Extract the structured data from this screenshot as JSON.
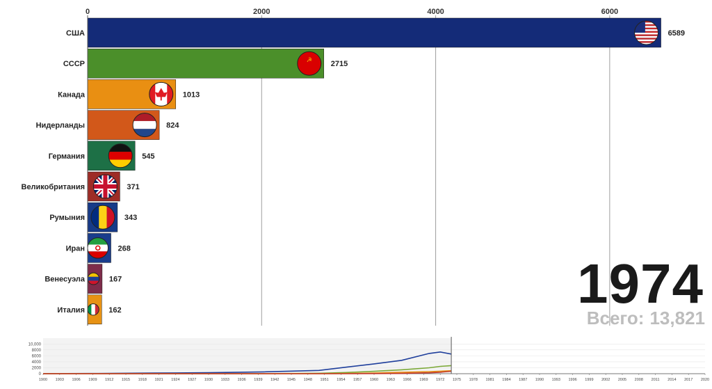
{
  "chart_data": [
    {
      "type": "bar",
      "orientation": "horizontal",
      "categories": [
        "США",
        "СССР",
        "Канада",
        "Нидерланды",
        "Германия",
        "Великобритания",
        "Румыния",
        "Иран",
        "Венесуэла",
        "Италия"
      ],
      "values": [
        6589,
        2715,
        1013,
        824,
        545,
        371,
        343,
        268,
        167,
        162
      ],
      "colors": [
        "#142b78",
        "#4b8f2a",
        "#e98f12",
        "#d2581a",
        "#1d7046",
        "#9e2c26",
        "#163a88",
        "#1a3d8c",
        "#7e2c4a",
        "#e79214"
      ],
      "flag_icons": [
        "us-flag-icon",
        "ussr-flag-icon",
        "canada-flag-icon",
        "netherlands-flag-icon",
        "germany-flag-icon",
        "uk-flag-icon",
        "romania-flag-icon",
        "iran-flag-icon",
        "venezuela-flag-icon",
        "italy-flag-icon"
      ],
      "xaxis_ticks": [
        0,
        2000,
        4000,
        6000
      ],
      "xlim": [
        0,
        7000
      ],
      "grid": true,
      "axis_position": "top"
    },
    {
      "type": "line",
      "x": [
        1900,
        1910,
        1920,
        1930,
        1940,
        1950,
        1955,
        1960,
        1965,
        1970,
        1972,
        1974
      ],
      "series": [
        {
          "color": "#1f3f9c",
          "values": [
            30,
            80,
            200,
            320,
            600,
            1100,
            2200,
            3300,
            4500,
            6800,
            7300,
            6589
          ]
        },
        {
          "color": "#7aa836",
          "values": [
            0,
            0,
            0,
            0,
            20,
            150,
            400,
            800,
            1300,
            2000,
            2450,
            2715
          ]
        },
        {
          "color": "#e98f12",
          "values": [
            0,
            0,
            0,
            0,
            0,
            10,
            60,
            200,
            500,
            700,
            850,
            1013
          ]
        },
        {
          "color": "#c0392b",
          "values": [
            0,
            0,
            0,
            0,
            0,
            0,
            10,
            40,
            100,
            300,
            500,
            824
          ]
        }
      ],
      "yticks": [
        "10,000",
        "8000",
        "6000",
        "4000",
        "2000",
        "0"
      ],
      "ylim": [
        0,
        11000
      ],
      "xticks": [
        "1900",
        "1903",
        "1906",
        "1909",
        "1912",
        "1915",
        "1918",
        "1921",
        "1924",
        "1927",
        "1930",
        "1933",
        "1936",
        "1939",
        "1942",
        "1945",
        "1948",
        "1951",
        "1954",
        "1957",
        "1960",
        "1963",
        "1966",
        "1969",
        "1972",
        "1975",
        "1978",
        "1981",
        "1984",
        "1987",
        "1990",
        "1993",
        "1996",
        "1999",
        "2002",
        "2005",
        "2008",
        "2011",
        "2014",
        "2017",
        "2020"
      ],
      "xlim": [
        1900,
        2020
      ],
      "current_year": 1974
    }
  ],
  "year": "1974",
  "total_label": "Всего:",
  "total_value": "13,821"
}
